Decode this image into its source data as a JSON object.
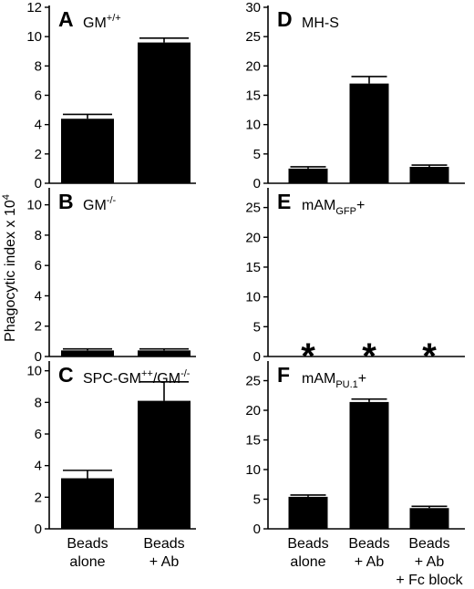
{
  "figure": {
    "ylabel": {
      "text": "Phagocytic index x 10",
      "superscript": "4"
    }
  },
  "chart_data": [
    {
      "type": "bar",
      "panel": "A",
      "title": {
        "main": "GM",
        "sup": "+/+",
        "sub": "",
        "tail": ""
      },
      "categories": [
        "Beads alone",
        "Beads + Ab"
      ],
      "values": [
        4.4,
        9.6
      ],
      "errors": [
        0.3,
        0.3
      ],
      "ylim": [
        0,
        12
      ],
      "yticks": [
        0,
        2,
        4,
        6,
        8,
        10,
        12
      ],
      "show_category_labels": false
    },
    {
      "type": "bar",
      "panel": "B",
      "title": {
        "main": "GM",
        "sup": "-/-",
        "sub": "",
        "tail": ""
      },
      "categories": [
        "Beads alone",
        "Beads + Ab"
      ],
      "values": [
        0.4,
        0.4
      ],
      "errors": [
        0.1,
        0.1
      ],
      "ylim": [
        0,
        11
      ],
      "yticks": [
        0,
        2,
        4,
        6,
        8,
        10
      ],
      "show_category_labels": false
    },
    {
      "type": "bar",
      "panel": "C",
      "title": {
        "main": "SPC-GM",
        "sup": "++",
        "sub": "",
        "tail": "/GM",
        "tail_sup": "-/-"
      },
      "categories": [
        "Beads alone",
        "Beads + Ab"
      ],
      "values": [
        3.2,
        8.1
      ],
      "errors": [
        0.5,
        1.2
      ],
      "ylim": [
        0,
        10.5
      ],
      "yticks": [
        0,
        2,
        4,
        6,
        8,
        10
      ],
      "show_category_labels": true,
      "category_lines": [
        [
          "Beads",
          "alone"
        ],
        [
          "Beads",
          "+ Ab"
        ]
      ]
    },
    {
      "type": "bar",
      "panel": "D",
      "title": {
        "main": "MH-S",
        "sup": "",
        "sub": "",
        "tail": ""
      },
      "categories": [
        "Beads alone",
        "Beads + Ab",
        "Beads + Ab + Fc block"
      ],
      "values": [
        2.5,
        17.0,
        2.8
      ],
      "errors": [
        0.3,
        1.2,
        0.3
      ],
      "ylim": [
        0,
        30
      ],
      "yticks": [
        0,
        5,
        10,
        15,
        20,
        25,
        30
      ],
      "show_category_labels": false
    },
    {
      "type": "bar",
      "panel": "E",
      "title": {
        "main": "mAM",
        "sup": "",
        "sub": "GFP",
        "tail": "+"
      },
      "categories": [
        "Beads alone",
        "Beads + Ab",
        "Beads + Ab + Fc block"
      ],
      "values": [
        0,
        0,
        0
      ],
      "errors": [
        0,
        0,
        0
      ],
      "markers": [
        "*",
        "*",
        "*"
      ],
      "ylim": [
        0,
        28
      ],
      "yticks": [
        0,
        5,
        10,
        15,
        20,
        25
      ],
      "show_category_labels": false
    },
    {
      "type": "bar",
      "panel": "F",
      "title": {
        "main": "mAM",
        "sup": "",
        "sub": "PU.1",
        "tail": "+"
      },
      "categories": [
        "Beads alone",
        "Beads + Ab",
        "Beads + Ab + Fc block"
      ],
      "values": [
        5.4,
        21.4,
        3.5
      ],
      "errors": [
        0.3,
        0.5,
        0.3
      ],
      "ylim": [
        0,
        28
      ],
      "yticks": [
        0,
        5,
        10,
        15,
        20,
        25
      ],
      "show_category_labels": true,
      "category_lines": [
        [
          "Beads",
          "alone"
        ],
        [
          "Beads",
          "+ Ab"
        ],
        [
          "Beads",
          "+ Ab",
          "+ Fc block"
        ]
      ]
    }
  ]
}
